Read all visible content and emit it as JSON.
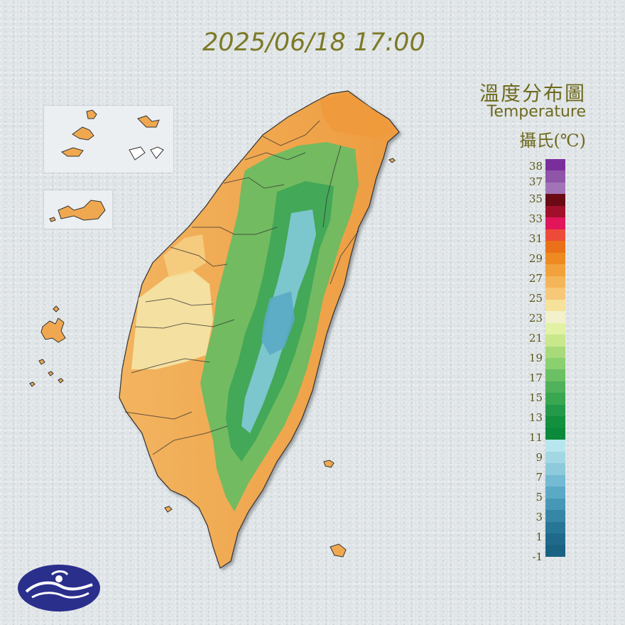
{
  "timestamp": "2025/06/18 17:00",
  "legend": {
    "title_zh": "溫度分布圖",
    "title_en": "Temperature",
    "unit": "攝氏(℃)",
    "labels": [
      "38",
      "37",
      "35",
      "33",
      "31",
      "29",
      "27",
      "25",
      "23",
      "21",
      "19",
      "17",
      "15",
      "13",
      "11",
      "9",
      "7",
      "5",
      "3",
      "1",
      "-1"
    ],
    "colors": [
      "#7a2e9c",
      "#8e55a8",
      "#a373b8",
      "#6b0a14",
      "#a0102a",
      "#e0155a",
      "#ee4a3a",
      "#ea7118",
      "#ee8a22",
      "#f2a23c",
      "#f4b558",
      "#f6c878",
      "#f6e29a",
      "#f2f1cc",
      "#e1f2a4",
      "#c9e88c",
      "#a8da7a",
      "#8ad06e",
      "#6cc064",
      "#4fb25a",
      "#39a650",
      "#24994a",
      "#12903e",
      "#0a8a3a",
      "#b8e6ee",
      "#a2d8e4",
      "#8ccadc",
      "#73bad2",
      "#5aaac6",
      "#4698b6",
      "#3686a6",
      "#287696",
      "#1f6a8a",
      "#1a6282"
    ],
    "colors_note_removed": ""
  },
  "map": {
    "description_colors": {
      "lowland": "#f0a850",
      "plain": "#f4e6a8",
      "mountain_mid": "#5cb860",
      "mountain_high": "#7fc8d4"
    }
  },
  "logo": {
    "name": "cwa-logo",
    "color": "#2a2f8c"
  }
}
